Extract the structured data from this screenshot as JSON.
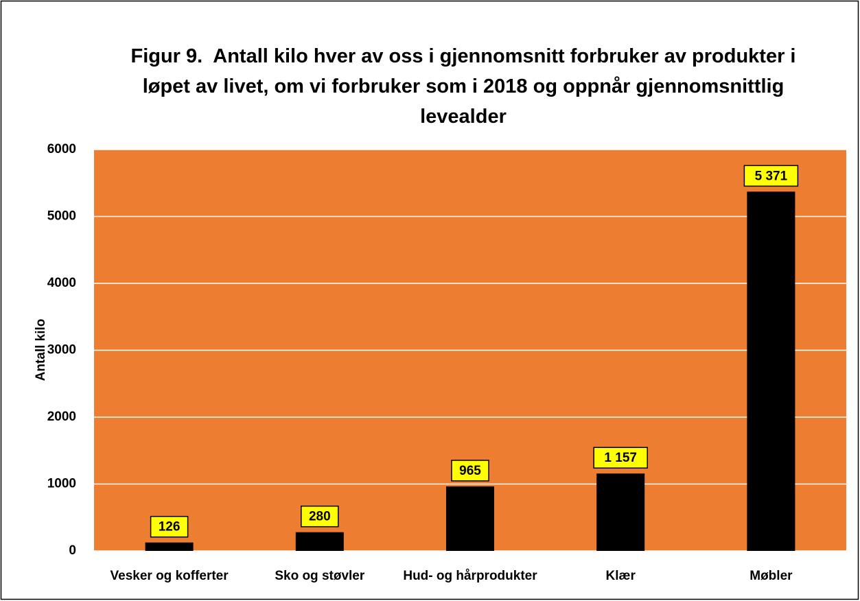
{
  "chart_data": {
    "type": "bar",
    "title": "Figur 9.  Antall kilo hver av oss i gjennomsnitt forbruker av produkter i løpet av livet, om vi forbruker som i 2018 og oppnår gjennomsnittlig levealder",
    "y_label": "Antall kilo",
    "categories": [
      "Vesker og kofferter",
      "Sko og støvler",
      "Hud- og hårprodukter",
      "Klær",
      "Møbler"
    ],
    "values": [
      126,
      280,
      965,
      1157,
      5371
    ],
    "value_labels": [
      "126",
      "280",
      "965",
      "1 157",
      "5 371"
    ],
    "color": "#000000",
    "plot_background": "#ED7D31",
    "label_background": "#FFFF00",
    "ylim": [
      0,
      6000
    ],
    "yticks": [
      0,
      1000,
      2000,
      3000,
      4000,
      5000,
      6000
    ],
    "grid": true
  }
}
